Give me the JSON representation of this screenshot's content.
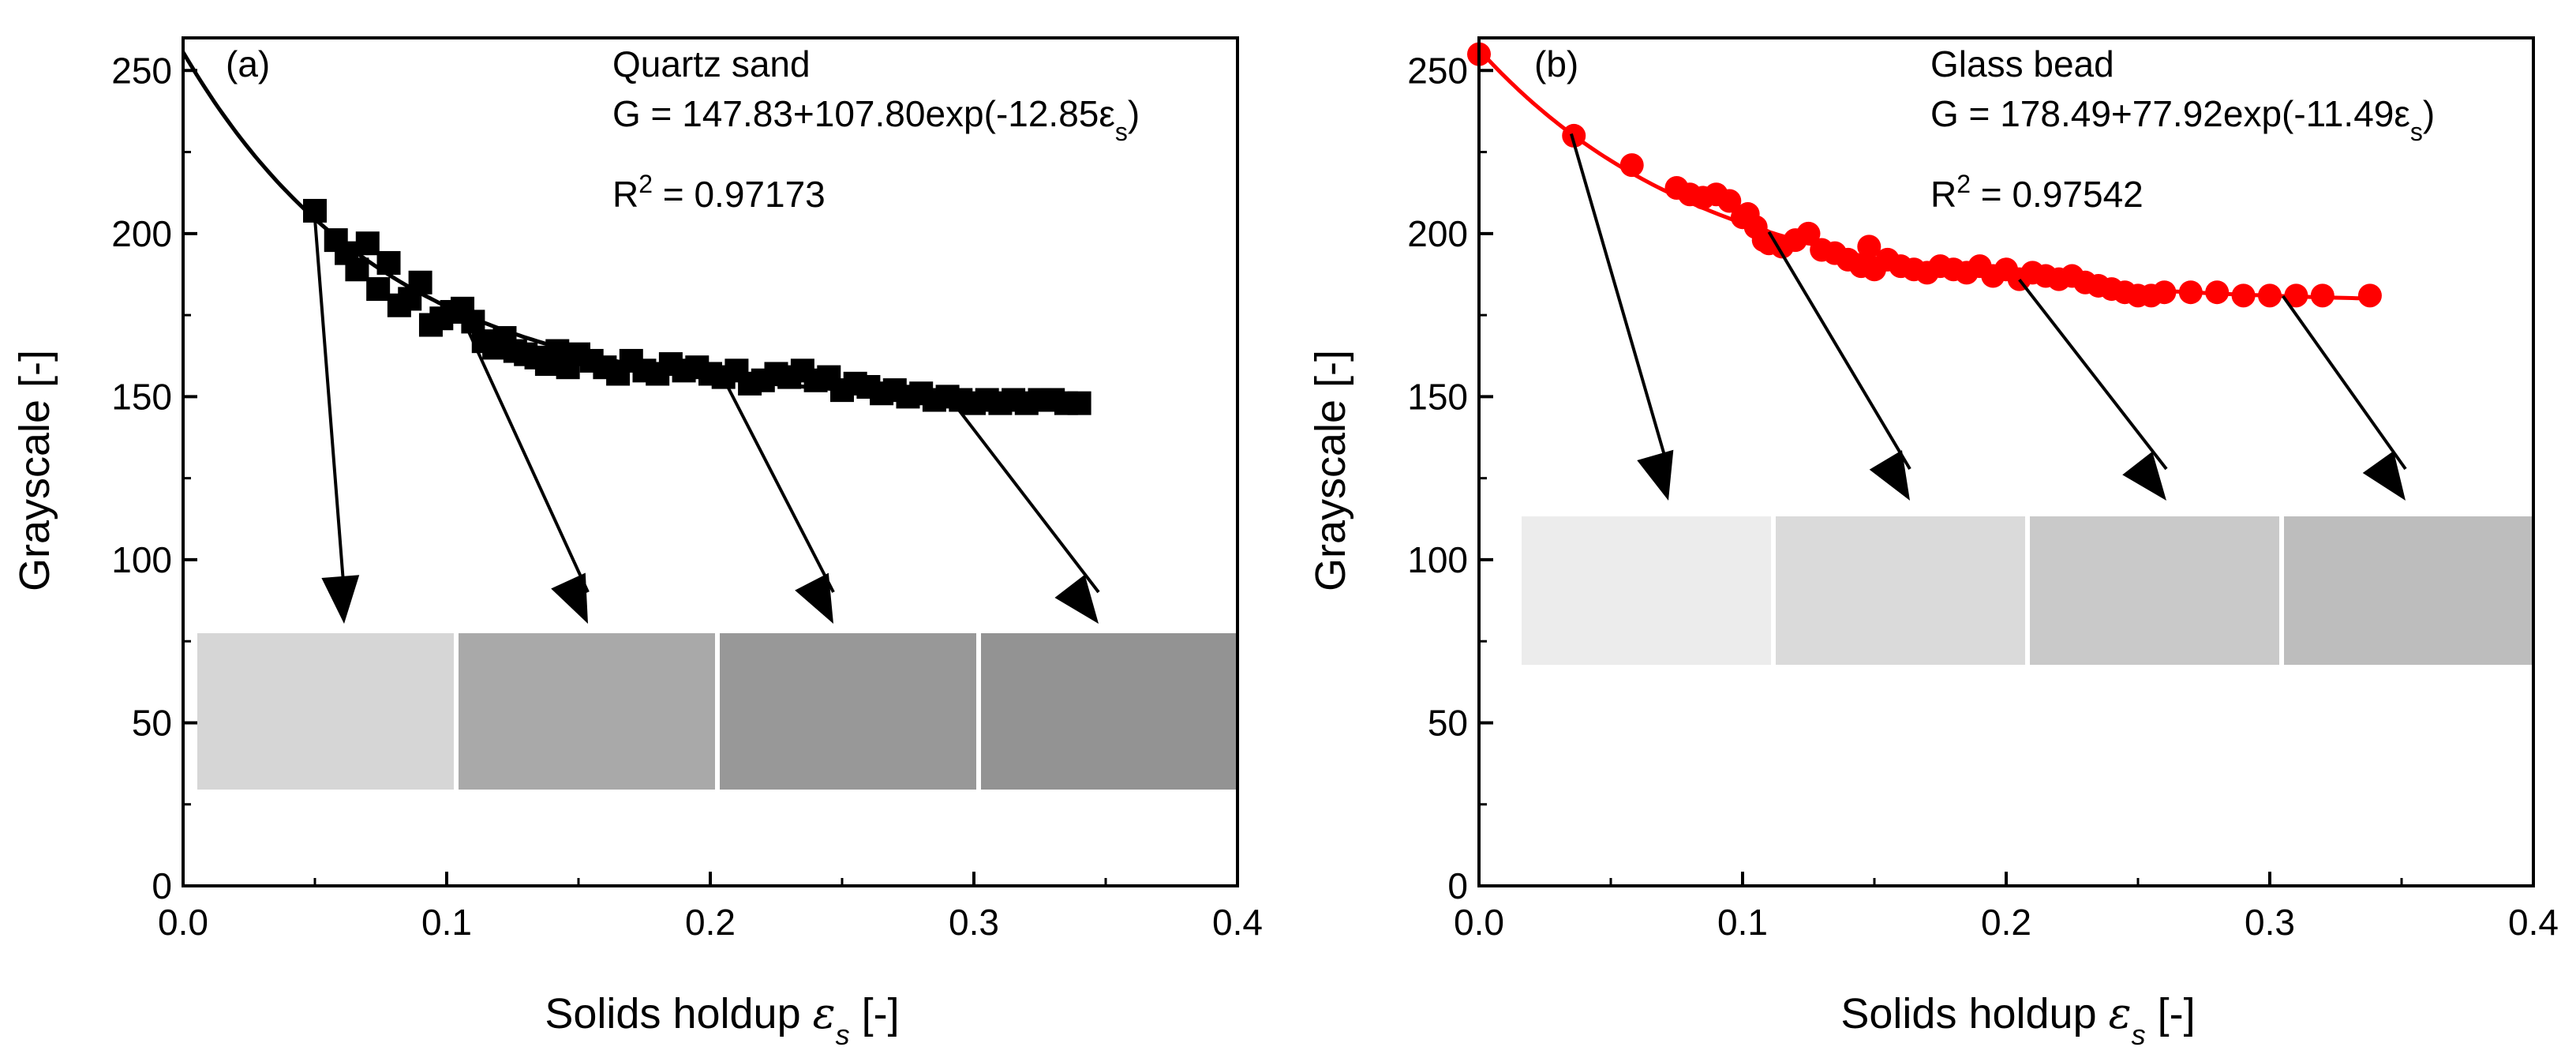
{
  "chart_data": [
    {
      "type": "scatter",
      "panel_label": "(a)",
      "title": "Quartz sand",
      "equation": "G = 147.83+107.80exp(-12.85ε",
      "equation_tail": ")",
      "subscript": "s",
      "r2_prefix": "R",
      "r2_sup": "2",
      "r2_value": " = 0.97173",
      "xlabel": "Solids holdup ",
      "xlabel_symbol": "ε",
      "xlabel_tail": " [-]",
      "ylabel": "Grayscale [-]",
      "xlim": [
        0,
        0.4
      ],
      "ylim": [
        0,
        260
      ],
      "xticks": [
        "0.0",
        "0.1",
        "0.2",
        "0.3",
        "0.4"
      ],
      "yticks": [
        "0",
        "50",
        "100",
        "150",
        "200",
        "250"
      ],
      "marker": "square",
      "marker_color": "#000000",
      "fit_color": "#000000",
      "fit": {
        "a": 147.83,
        "b": 107.8,
        "c": 12.85
      },
      "series": [
        {
          "name": "Quartz sand",
          "x": [
            0.05,
            0.058,
            0.062,
            0.066,
            0.07,
            0.074,
            0.078,
            0.082,
            0.086,
            0.09,
            0.094,
            0.098,
            0.102,
            0.106,
            0.11,
            0.114,
            0.118,
            0.122,
            0.126,
            0.13,
            0.134,
            0.138,
            0.142,
            0.146,
            0.15,
            0.155,
            0.16,
            0.165,
            0.17,
            0.175,
            0.18,
            0.185,
            0.19,
            0.195,
            0.2,
            0.205,
            0.21,
            0.215,
            0.22,
            0.225,
            0.23,
            0.235,
            0.24,
            0.245,
            0.25,
            0.255,
            0.26,
            0.265,
            0.27,
            0.275,
            0.28,
            0.285,
            0.29,
            0.295,
            0.3,
            0.305,
            0.31,
            0.315,
            0.32,
            0.325,
            0.33,
            0.335,
            0.34
          ],
          "y": [
            207,
            198,
            194,
            189,
            197,
            183,
            191,
            178,
            180,
            185,
            172,
            174,
            176,
            177,
            173,
            167,
            165,
            168,
            164,
            163,
            162,
            160,
            164,
            159,
            163,
            161,
            159,
            157,
            161,
            158,
            157,
            160,
            158,
            159,
            157,
            156,
            158,
            154,
            155,
            157,
            156,
            158,
            155,
            156,
            152,
            154,
            153,
            151,
            152,
            150,
            151,
            149,
            150,
            149,
            148,
            149,
            148,
            149,
            148,
            149,
            149,
            148,
            148
          ]
        }
      ],
      "image_strip": {
        "label": "grayscale images",
        "shades": [
          "#d6d6d6",
          "#a9a9a9",
          "#989898",
          "#939393"
        ]
      },
      "arrows_from_x": [
        0.05,
        0.105,
        0.205,
        0.29
      ]
    },
    {
      "type": "scatter",
      "panel_label": "(b)",
      "title": "Glass bead",
      "equation": "G = 178.49+77.92exp(-11.49ε",
      "equation_tail": ")",
      "subscript": "s",
      "r2_prefix": "R",
      "r2_sup": "2",
      "r2_value": " = 0.97542",
      "xlabel": "Solids holdup ",
      "xlabel_symbol": "ε",
      "xlabel_tail": " [-]",
      "ylabel": "Grayscale [-]",
      "xlim": [
        0,
        0.4
      ],
      "ylim": [
        0,
        260
      ],
      "xticks": [
        "0.0",
        "0.1",
        "0.2",
        "0.3",
        "0.4"
      ],
      "yticks": [
        "0",
        "50",
        "100",
        "150",
        "200",
        "250"
      ],
      "marker": "circle",
      "marker_color": "#ff0000",
      "fit_color": "#ff0000",
      "fit": {
        "a": 178.49,
        "b": 77.92,
        "c": 11.49
      },
      "series": [
        {
          "name": "Glass bead",
          "x": [
            0.0,
            0.036,
            0.058,
            0.075,
            0.08,
            0.085,
            0.09,
            0.095,
            0.1,
            0.102,
            0.105,
            0.108,
            0.11,
            0.115,
            0.12,
            0.125,
            0.13,
            0.135,
            0.14,
            0.145,
            0.148,
            0.15,
            0.155,
            0.16,
            0.165,
            0.17,
            0.175,
            0.18,
            0.185,
            0.19,
            0.195,
            0.2,
            0.205,
            0.21,
            0.215,
            0.22,
            0.225,
            0.23,
            0.235,
            0.24,
            0.245,
            0.25,
            0.255,
            0.26,
            0.27,
            0.28,
            0.29,
            0.3,
            0.31,
            0.32,
            0.338
          ],
          "y": [
            255,
            230,
            221,
            214,
            212,
            211,
            212,
            210,
            205,
            206,
            202,
            198,
            197,
            196,
            198,
            200,
            195,
            194,
            192,
            190,
            196,
            189,
            192,
            190,
            189,
            188,
            190,
            189,
            188,
            190,
            187,
            189,
            186,
            188,
            187,
            186,
            187,
            185,
            184,
            183,
            182,
            181,
            181,
            182,
            182,
            182,
            181,
            181,
            181,
            181,
            181
          ]
        }
      ],
      "image_strip": {
        "label": "grayscale images",
        "shades": [
          "#ececec",
          "#dadada",
          "#c9c9c9",
          "#bdbdbd"
        ]
      },
      "arrows_from_x": [
        0.035,
        0.11,
        0.205,
        0.305
      ]
    }
  ]
}
